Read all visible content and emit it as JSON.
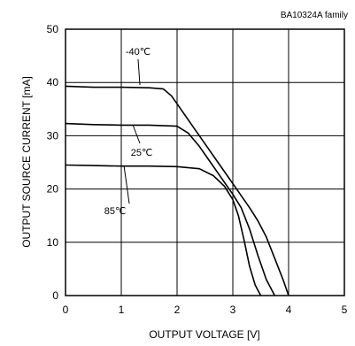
{
  "chart_data": {
    "type": "line",
    "title": "BA10324A  family",
    "xlabel": "OUTPUT VOLTAGE [V]",
    "ylabel": "OUTPUT SOURCE CURRENT [mA]",
    "xlim": [
      0,
      5
    ],
    "ylim": [
      0,
      50
    ],
    "xticks": [
      "0",
      "1",
      "2",
      "3",
      "4",
      "5"
    ],
    "yticks": [
      "0",
      "10",
      "20",
      "30",
      "40",
      "50"
    ],
    "grid": true,
    "series": [
      {
        "name": "-40℃",
        "points": [
          [
            0,
            39.3
          ],
          [
            0.5,
            39.1
          ],
          [
            1.0,
            39.1
          ],
          [
            1.5,
            39.0
          ],
          [
            1.75,
            38.8
          ],
          [
            1.9,
            37.5
          ],
          [
            2.1,
            34.5
          ],
          [
            2.3,
            31.5
          ],
          [
            2.5,
            28.5
          ],
          [
            2.7,
            25.5
          ],
          [
            2.9,
            22.5
          ],
          [
            3.1,
            19.5
          ],
          [
            3.3,
            16.5
          ],
          [
            3.45,
            14.0
          ],
          [
            3.6,
            11.0
          ],
          [
            3.75,
            7.0
          ],
          [
            3.9,
            3.0
          ],
          [
            4.0,
            0
          ]
        ]
      },
      {
        "name": "25℃",
        "points": [
          [
            0,
            32.3
          ],
          [
            0.5,
            32.1
          ],
          [
            1.0,
            32.0
          ],
          [
            1.5,
            32.0
          ],
          [
            2.0,
            31.8
          ],
          [
            2.2,
            30.5
          ],
          [
            2.4,
            28.0
          ],
          [
            2.6,
            25.0
          ],
          [
            2.8,
            22.0
          ],
          [
            3.0,
            19.0
          ],
          [
            3.15,
            16.5
          ],
          [
            3.3,
            12.5
          ],
          [
            3.45,
            7.5
          ],
          [
            3.6,
            3.0
          ],
          [
            3.75,
            0
          ]
        ]
      },
      {
        "name": "85℃",
        "points": [
          [
            0,
            24.5
          ],
          [
            0.5,
            24.4
          ],
          [
            1.0,
            24.3
          ],
          [
            1.5,
            24.3
          ],
          [
            2.0,
            24.2
          ],
          [
            2.4,
            23.8
          ],
          [
            2.65,
            22.5
          ],
          [
            2.85,
            20.5
          ],
          [
            3.0,
            18.0
          ],
          [
            3.1,
            15.0
          ],
          [
            3.2,
            10.5
          ],
          [
            3.3,
            5.5
          ],
          [
            3.4,
            2.0
          ],
          [
            3.5,
            0
          ]
        ]
      }
    ]
  }
}
